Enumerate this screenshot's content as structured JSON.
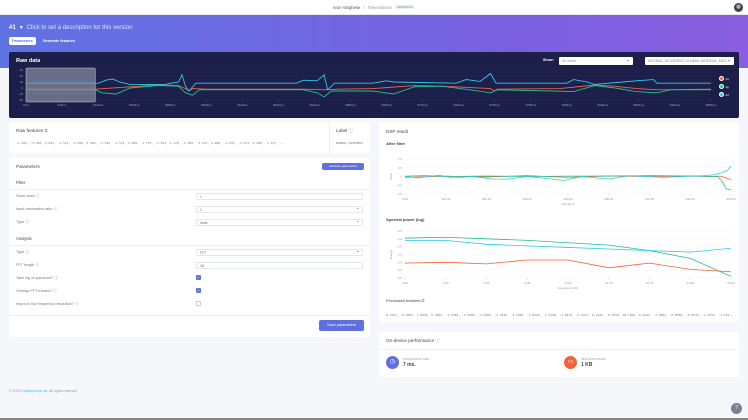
{
  "topbar": {
    "user": "Arun Varghese",
    "separator": "/",
    "project": "Telemedicine",
    "badge": "PERSONAL"
  },
  "version": {
    "number": "#1",
    "caret": "▾",
    "description": "Click to set a description for this version"
  },
  "tabs": [
    {
      "label": "Parameters",
      "active": true
    },
    {
      "label": "Generate features",
      "active": false
    }
  ],
  "raw_data": {
    "title": "Raw data",
    "show_label": "Show:",
    "labels_select": "All labels",
    "sample_select": "NORMAL_MOVEMENT.47p0j9ks (NORMAL_MOVEMENT)"
  },
  "raw_features": {
    "title": "Raw features",
    "values": "-1.303, -3.550, 5.093, -1.515, -3.585, 5.456, -3.342, -1.574, 5.048, -1.775, -3.534, 5.178, -1.350, -3.514, 5.080, -1.535, -3.513, 5.208, -3.151, ...",
    "label_title": "Label",
    "label_value": "NORMAL_MOVEMENT"
  },
  "parameters": {
    "title": "Parameters",
    "autotune": "Autotune parameters",
    "filter_title": "Filter",
    "scale_axes": {
      "label": "Scale axes",
      "value": "1"
    },
    "decimation": {
      "label": "Input decimation ratio",
      "value": "1"
    },
    "filter_type": {
      "label": "Type",
      "value": "none"
    },
    "analysis_title": "Analysis",
    "analysis_type": {
      "label": "Type",
      "value": "FFT"
    },
    "fft_length": {
      "label": "FFT length",
      "value": "16"
    },
    "log_spectrum": {
      "label": "Take log of spectrum?",
      "checked": true
    },
    "overlap": {
      "label": "Overlap FFT frames?",
      "checked": true
    },
    "low_freq": {
      "label": "Improve low frequency resolution?",
      "checked": false
    },
    "save": "Save parameters"
  },
  "dsp": {
    "title": "DSP result",
    "after_filter_title": "After filter",
    "spectral_title": "Spectral power (log)",
    "processed_title": "Processed features",
    "processed_values": "0.4337, -0.9561, 1.0058, 0.3495, -1.3358, -2.5000, -3.4304, -2.3536, -2.5605, -3.8544, -1.5398, -2.0472, -3.5213, 0.1422, -0.4754, 18.7601, 0.4441, -1.7801, -0.8550, -0.9570, -1.4754, -1.129..."
  },
  "performance": {
    "title": "On-device performance",
    "processing_label": "PROCESSING TIME",
    "processing_value": "7 ms.",
    "ram_label": "PEAK RAM USAGE",
    "ram_value": "1 KB"
  },
  "footer": {
    "copyright": "© 2024",
    "company": "EdgeImpulse Inc.",
    "rights": "All rights reserved"
  },
  "colors": {
    "ax": "#f4623a",
    "ay": "#22c08a",
    "az": "#2ec9e8",
    "accent": "#5f6fe0"
  },
  "chart_data": [
    {
      "type": "line",
      "title": "Raw data",
      "xlim": [
        0,
        9880
      ],
      "ylim": [
        -20,
        30
      ],
      "xticks": [
        "0ms",
        "520ms",
        "1040ms",
        "1560ms",
        "2080ms",
        "2600ms",
        "3120ms",
        "3640ms",
        "4160ms",
        "4680ms",
        "5200ms",
        "5720ms",
        "6240ms",
        "6760ms",
        "7280ms",
        "7800ms",
        "8320ms",
        "8840ms",
        "9360ms",
        "9880ms"
      ],
      "yticks": [
        "30",
        "20",
        "10",
        "0",
        "-10",
        "-20"
      ],
      "legend": "right",
      "series": [
        {
          "name": "Ax",
          "color": "#f4623a",
          "points": [
            [
              0,
              -2
            ],
            [
              1000,
              -2
            ],
            [
              1500,
              2
            ],
            [
              1900,
              5
            ],
            [
              2200,
              4
            ],
            [
              2300,
              -1
            ],
            [
              2350,
              -5
            ],
            [
              2400,
              -1
            ],
            [
              2600,
              -2
            ],
            [
              4000,
              -2
            ],
            [
              4300,
              -3
            ],
            [
              4500,
              -2
            ],
            [
              5000,
              -1
            ],
            [
              5600,
              4
            ],
            [
              6000,
              3
            ],
            [
              6700,
              -1
            ],
            [
              6750,
              -5
            ],
            [
              6800,
              -2
            ],
            [
              7700,
              -1
            ],
            [
              8200,
              5
            ],
            [
              8500,
              3
            ],
            [
              8800,
              -1
            ],
            [
              9100,
              -3
            ],
            [
              9880,
              -2
            ]
          ]
        },
        {
          "name": "Ay",
          "color": "#22c08a",
          "points": [
            [
              0,
              -3
            ],
            [
              1000,
              -3
            ],
            [
              1100,
              -8
            ],
            [
              1300,
              -10
            ],
            [
              1500,
              0
            ],
            [
              1900,
              4
            ],
            [
              2200,
              3
            ],
            [
              2300,
              -8
            ],
            [
              2400,
              -12
            ],
            [
              2500,
              -3
            ],
            [
              4000,
              -3
            ],
            [
              4200,
              -8
            ],
            [
              4300,
              -15
            ],
            [
              4400,
              -5
            ],
            [
              5000,
              -5
            ],
            [
              5300,
              -10
            ],
            [
              5600,
              2
            ],
            [
              6000,
              3
            ],
            [
              6400,
              -3
            ],
            [
              6700,
              -8
            ],
            [
              6800,
              -3
            ],
            [
              7600,
              -5
            ],
            [
              7900,
              -6
            ],
            [
              8200,
              4
            ],
            [
              8500,
              0
            ],
            [
              8800,
              -6
            ],
            [
              9100,
              -8
            ],
            [
              9300,
              -3
            ],
            [
              9880,
              -3
            ]
          ]
        },
        {
          "name": "Az",
          "color": "#2ec9e8",
          "points": [
            [
              0,
              8
            ],
            [
              1050,
              8
            ],
            [
              1150,
              13
            ],
            [
              1250,
              15
            ],
            [
              1350,
              10
            ],
            [
              1500,
              6
            ],
            [
              2000,
              6
            ],
            [
              2200,
              10
            ],
            [
              2250,
              22
            ],
            [
              2300,
              3
            ],
            [
              2350,
              -5
            ],
            [
              2450,
              8
            ],
            [
              3900,
              8
            ],
            [
              4000,
              13
            ],
            [
              4200,
              12
            ],
            [
              4300,
              22
            ],
            [
              4350,
              -3
            ],
            [
              4450,
              8
            ],
            [
              5000,
              8
            ],
            [
              5200,
              12
            ],
            [
              5300,
              10
            ],
            [
              6200,
              8
            ],
            [
              6350,
              14
            ],
            [
              6550,
              11
            ],
            [
              6700,
              24
            ],
            [
              6780,
              8
            ],
            [
              7800,
              8
            ],
            [
              7900,
              14
            ],
            [
              8100,
              10
            ],
            [
              8200,
              6
            ],
            [
              8600,
              10
            ],
            [
              8800,
              12
            ],
            [
              9050,
              14
            ],
            [
              9100,
              8
            ],
            [
              9880,
              8
            ]
          ]
        }
      ],
      "selection_ms": [
        0,
        1000
      ]
    },
    {
      "type": "line",
      "title": "After filter",
      "xlabel": "Sample #",
      "ylabel": "Value",
      "xlim": [
        0,
        960
      ],
      "ylim": [
        -1,
        1
      ],
      "xticks": [
        "0.00",
        "120.00",
        "240.00",
        "360.00",
        "480.00",
        "600.00",
        "720.00",
        "840.00",
        "960.00"
      ],
      "yticks": [
        "1.0",
        "0.5",
        "0",
        "-0.5",
        "-1.0"
      ],
      "series": [
        {
          "color": "#f4623a",
          "points": [
            [
              0,
              -0.05
            ],
            [
              120,
              0.02
            ],
            [
              240,
              -0.03
            ],
            [
              360,
              0.05
            ],
            [
              480,
              -0.05
            ],
            [
              600,
              0.03
            ],
            [
              720,
              0
            ],
            [
              840,
              0.02
            ],
            [
              900,
              0
            ],
            [
              930,
              0.02
            ],
            [
              960,
              -0.18
            ]
          ]
        },
        {
          "color": "#22c08a",
          "points": [
            [
              0,
              0.02
            ],
            [
              60,
              0.05
            ],
            [
              120,
              0
            ],
            [
              240,
              0.03
            ],
            [
              360,
              0
            ],
            [
              480,
              0.02
            ],
            [
              600,
              0.03
            ],
            [
              720,
              0.05
            ],
            [
              840,
              0.03
            ],
            [
              920,
              0
            ],
            [
              935,
              -0.3
            ],
            [
              945,
              -0.7
            ],
            [
              960,
              -0.75
            ]
          ]
        },
        {
          "color": "#2ec9e8",
          "points": [
            [
              0,
              0
            ],
            [
              40,
              -0.08
            ],
            [
              100,
              0.08
            ],
            [
              140,
              -0.08
            ],
            [
              200,
              0
            ],
            [
              260,
              -0.15
            ],
            [
              300,
              -0.15
            ],
            [
              360,
              0
            ],
            [
              470,
              -0.22
            ],
            [
              520,
              0
            ],
            [
              600,
              -0.15
            ],
            [
              660,
              0.05
            ],
            [
              760,
              -0.05
            ],
            [
              880,
              0.05
            ],
            [
              910,
              0.1
            ],
            [
              930,
              0.2
            ],
            [
              950,
              0.35
            ],
            [
              960,
              0.6
            ]
          ]
        }
      ]
    },
    {
      "type": "line",
      "title": "Spectral power (log)",
      "xlabel": "Frequency (Hz)",
      "ylabel": "Energy",
      "xlim": [
        0,
        25
      ],
      "ylim": [
        -3.5,
        -0.5
      ],
      "xticks": [
        "0.00",
        "3.13",
        "6.25",
        "9.38",
        "12.50",
        "15.63",
        "18.75",
        "21.88",
        "25.00"
      ],
      "yticks": [
        "-0.5",
        "-1.0",
        "-1.5",
        "-2.0",
        "-2.5",
        "-3.0",
        "-3.5"
      ],
      "series": [
        {
          "color": "#22c08a",
          "points": [
            [
              0,
              -0.95
            ],
            [
              3.13,
              -0.9
            ],
            [
              6.25,
              -1.0
            ],
            [
              9.38,
              -1.1
            ],
            [
              12.5,
              -1.25
            ],
            [
              15.63,
              -1.4
            ],
            [
              18.75,
              -1.75
            ],
            [
              21.88,
              -2.25
            ],
            [
              25,
              -3.4
            ]
          ]
        },
        {
          "color": "#2ec9e8",
          "points": [
            [
              0,
              -1.1
            ],
            [
              3.13,
              -1.1
            ],
            [
              6.25,
              -1.35
            ],
            [
              9.38,
              -1.45
            ],
            [
              12.5,
              -1.55
            ],
            [
              15.63,
              -1.65
            ],
            [
              18.75,
              -1.75
            ],
            [
              21.88,
              -1.85
            ],
            [
              25,
              -1.6
            ]
          ]
        },
        {
          "color": "#f4623a",
          "points": [
            [
              0,
              -2.55
            ],
            [
              3.13,
              -2.5
            ],
            [
              6.25,
              -2.6
            ],
            [
              9.38,
              -2.35
            ],
            [
              12.5,
              -2.35
            ],
            [
              15.63,
              -2.85
            ],
            [
              18.75,
              -2.55
            ],
            [
              21.88,
              -2.95
            ],
            [
              25,
              -3.1
            ]
          ]
        }
      ]
    }
  ]
}
